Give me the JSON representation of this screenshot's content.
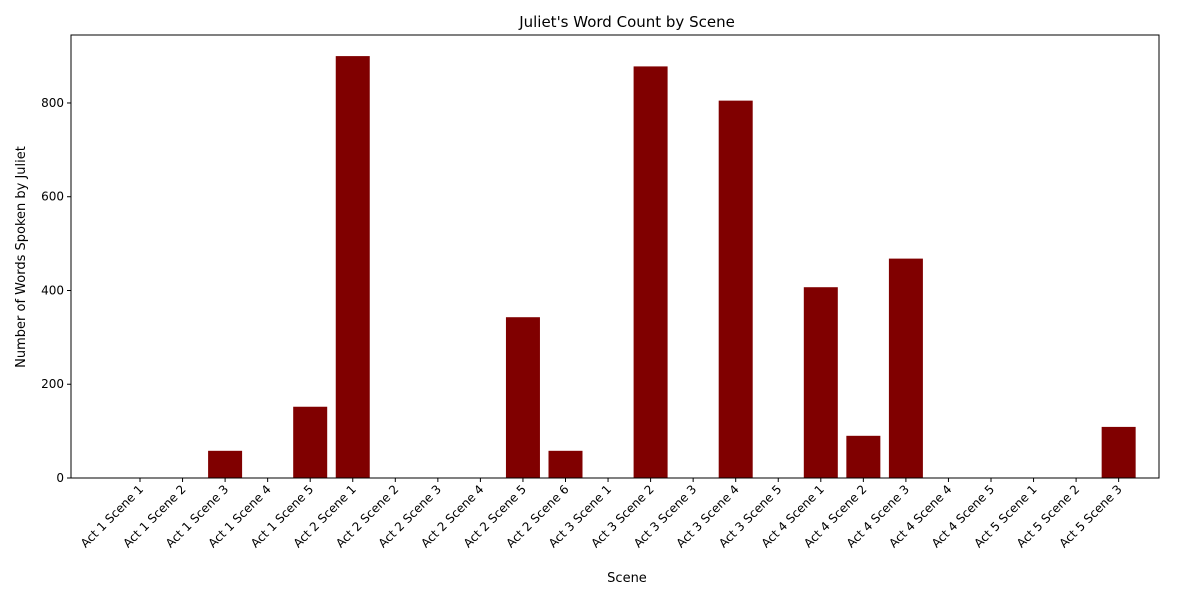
{
  "chart_data": {
    "type": "bar",
    "title": "Juliet's Word Count by Scene",
    "xlabel": "Scene",
    "ylabel": "Number of Words Spoken by Juliet",
    "ylim": [
      0,
      945
    ],
    "yticks": [
      0,
      200,
      400,
      600,
      800
    ],
    "bar_color": "#800000",
    "grid": false,
    "categories": [
      "Act 1 Scene 1",
      "Act 1 Scene 2",
      "Act 1 Scene 3",
      "Act 1 Scene 4",
      "Act 1 Scene 5",
      "Act 2 Scene 1",
      "Act 2 Scene 2",
      "Act 2 Scene 3",
      "Act 2 Scene 4",
      "Act 2 Scene 5",
      "Act 2 Scene 6",
      "Act 3 Scene 1",
      "Act 3 Scene 2",
      "Act 3 Scene 3",
      "Act 3 Scene 4",
      "Act 3 Scene 5",
      "Act 4 Scene 1",
      "Act 4 Scene 2",
      "Act 4 Scene 3",
      "Act 4 Scene 4",
      "Act 4 Scene 5",
      "Act 5 Scene 1",
      "Act 5 Scene 2",
      "Act 5 Scene 3"
    ],
    "values": [
      0,
      0,
      58,
      0,
      152,
      900,
      0,
      0,
      0,
      343,
      58,
      0,
      878,
      0,
      805,
      0,
      407,
      90,
      468,
      0,
      0,
      0,
      0,
      109
    ]
  }
}
